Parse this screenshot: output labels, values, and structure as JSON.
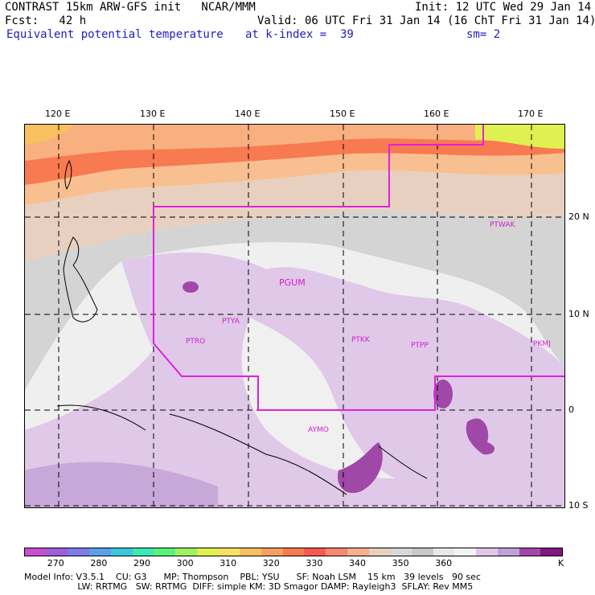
{
  "header": {
    "model": "CONTRAST 15km ARW-GFS init   NCAR/MMM",
    "init": "Init: 12 UTC Wed 29 Jan 14",
    "fcst": "Fcst:   42 h",
    "valid": "Valid: 06 UTC Fri 31 Jan 14 (16 ChT Fri 31 Jan 14)",
    "field": "Equivalent potential temperature",
    "level": "at k-index =  39",
    "smooth": "sm= 2"
  },
  "map": {
    "lon_labels": [
      "120 E",
      "130 E",
      "140 E",
      "150 E",
      "160 E",
      "170 E"
    ],
    "lat_labels": [
      "20 N",
      "10 N",
      "0",
      "10 S"
    ],
    "stations": [
      "PTYA",
      "PTRO",
      "PGUM",
      "PTKK",
      "PTPP",
      "PKMJ",
      "PTWAK",
      "AYMO"
    ]
  },
  "colorbar": {
    "colors": [
      "#c84fd0",
      "#9b5fd8",
      "#7c7ce8",
      "#5aa0e8",
      "#3cc8dc",
      "#3ce8b4",
      "#5af07a",
      "#a0f060",
      "#e0f050",
      "#f8e060",
      "#f8c060",
      "#f8a060",
      "#f87a50",
      "#f85a50",
      "#f88870",
      "#f8b090",
      "#e8d0c0",
      "#d8d8d8",
      "#c8c8c8",
      "#e8e8e8",
      "#f4f4f4",
      "#e0c8e8",
      "#c0a0d8",
      "#a048a8",
      "#801880"
    ],
    "labels": [
      "270",
      "280",
      "290",
      "300",
      "310",
      "320",
      "330",
      "340",
      "350",
      "360"
    ],
    "unit": "K"
  },
  "footer": {
    "line1": "Model Info: V3.5.1    CU: G3      MP: Thompson    PBL: YSU      SF: Noah LSM    15 km   39 levels   90 sec",
    "line2": "                   LW: RRTMG   SW: RRTMG  DIFF: simple KM: 3D Smagor DAMP: Rayleigh3  SFLAY: Rev MM5"
  }
}
